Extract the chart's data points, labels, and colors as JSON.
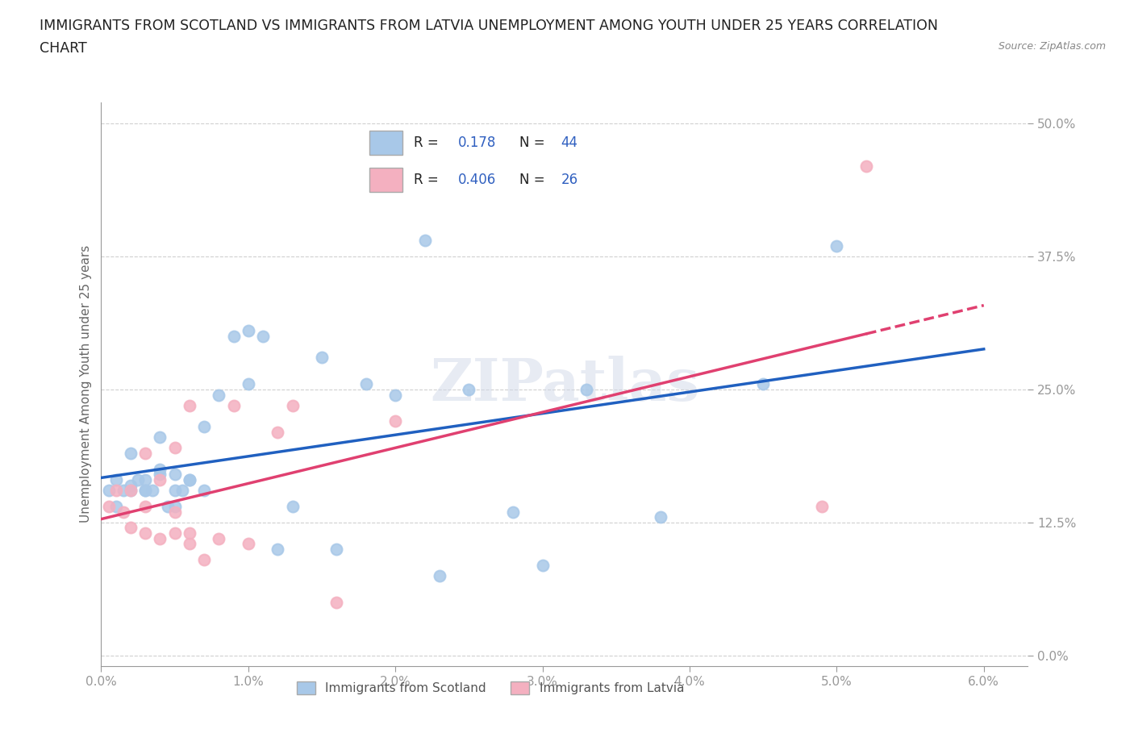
{
  "title_line1": "IMMIGRANTS FROM SCOTLAND VS IMMIGRANTS FROM LATVIA UNEMPLOYMENT AMONG YOUTH UNDER 25 YEARS CORRELATION",
  "title_line2": "CHART",
  "source_text": "Source: ZipAtlas.com",
  "ylabel": "Unemployment Among Youth under 25 years",
  "x_tick_labels": [
    "0.0%",
    "1.0%",
    "2.0%",
    "3.0%",
    "4.0%",
    "5.0%",
    "6.0%"
  ],
  "y_tick_labels": [
    "0.0%",
    "12.5%",
    "25.0%",
    "37.5%",
    "50.0%"
  ],
  "xlim": [
    0.0,
    0.063
  ],
  "ylim": [
    -0.01,
    0.52
  ],
  "scotland_R": 0.178,
  "scotland_N": 44,
  "latvia_R": 0.406,
  "latvia_N": 26,
  "scotland_color": "#a8c8e8",
  "latvia_color": "#f4b0c0",
  "scotland_line_color": "#2060c0",
  "latvia_line_color": "#e04070",
  "legend_label_scotland": "Immigrants from Scotland",
  "legend_label_latvia": "Immigrants from Latvia",
  "watermark": "ZIPatlas",
  "scotland_x": [
    0.0005,
    0.001,
    0.001,
    0.0015,
    0.002,
    0.002,
    0.002,
    0.0025,
    0.003,
    0.003,
    0.003,
    0.0035,
    0.004,
    0.004,
    0.004,
    0.0045,
    0.005,
    0.005,
    0.005,
    0.0055,
    0.006,
    0.006,
    0.007,
    0.007,
    0.008,
    0.009,
    0.01,
    0.01,
    0.011,
    0.012,
    0.013,
    0.015,
    0.016,
    0.018,
    0.02,
    0.022,
    0.023,
    0.025,
    0.028,
    0.03,
    0.033,
    0.038,
    0.045,
    0.05
  ],
  "scotland_y": [
    0.155,
    0.14,
    0.165,
    0.155,
    0.155,
    0.16,
    0.19,
    0.165,
    0.155,
    0.165,
    0.155,
    0.155,
    0.17,
    0.175,
    0.205,
    0.14,
    0.155,
    0.17,
    0.14,
    0.155,
    0.165,
    0.165,
    0.155,
    0.215,
    0.245,
    0.3,
    0.255,
    0.305,
    0.3,
    0.1,
    0.14,
    0.28,
    0.1,
    0.255,
    0.245,
    0.39,
    0.075,
    0.25,
    0.135,
    0.085,
    0.25,
    0.13,
    0.255,
    0.385
  ],
  "latvia_x": [
    0.0005,
    0.001,
    0.0015,
    0.002,
    0.002,
    0.003,
    0.003,
    0.003,
    0.004,
    0.004,
    0.005,
    0.005,
    0.005,
    0.006,
    0.006,
    0.006,
    0.007,
    0.008,
    0.009,
    0.01,
    0.012,
    0.013,
    0.016,
    0.02,
    0.049,
    0.052
  ],
  "latvia_y": [
    0.14,
    0.155,
    0.135,
    0.12,
    0.155,
    0.115,
    0.14,
    0.19,
    0.11,
    0.165,
    0.115,
    0.135,
    0.195,
    0.105,
    0.115,
    0.235,
    0.09,
    0.11,
    0.235,
    0.105,
    0.21,
    0.235,
    0.05,
    0.22,
    0.14,
    0.46
  ],
  "grid_color": "#d0d0d0",
  "grid_style": "--",
  "background_color": "#ffffff",
  "title_fontsize": 12.5,
  "axis_label_fontsize": 11,
  "tick_fontsize": 11,
  "legend_fontsize": 13,
  "tick_color": "#4060a0"
}
